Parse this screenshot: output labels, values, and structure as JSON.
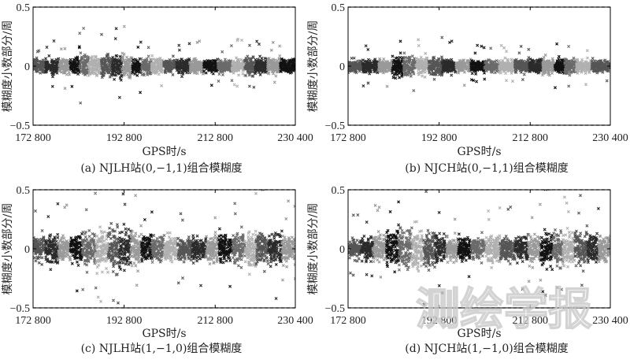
{
  "watermark": "测绘学报",
  "chart_data": [
    {
      "type": "scatter",
      "caption": "(a) NJLH站(0,−1,1)组合模糊度",
      "xlabel": "GPS时/s",
      "ylabel": "模糊度小数部分/周",
      "xlim": [
        172800,
        230400
      ],
      "ylim": [
        -0.5,
        0.5
      ],
      "xticks": [
        172800,
        192800,
        212800,
        230400
      ],
      "xtick_labels": [
        "172 800",
        "192 800",
        "212 800",
        "230 400"
      ],
      "yticks": [
        -0.5,
        0,
        0.5
      ],
      "ytick_labels": [
        "−0.5",
        "0",
        "0.5"
      ],
      "threshold_lines": [
        0.5,
        -0.5
      ],
      "marker": "x",
      "colors": [
        "#555555",
        "#2a2a2a",
        "#999999",
        "#111111",
        "#6a6a6a",
        "#b0b0b0"
      ],
      "segments": [
        {
          "x": [
            172800,
            175500
          ],
          "spread": 0.11
        },
        {
          "x": [
            175500,
            178500
          ],
          "spread": 0.12
        },
        {
          "x": [
            178500,
            180900
          ],
          "spread": 0.11
        },
        {
          "x": [
            180900,
            183000
          ],
          "spread": 0.13
        },
        {
          "x": [
            183000,
            185000
          ],
          "spread": 0.2
        },
        {
          "x": [
            185000,
            187800
          ],
          "spread": 0.16
        },
        {
          "x": [
            187800,
            190200
          ],
          "spread": 0.18
        },
        {
          "x": [
            190200,
            192400
          ],
          "spread": 0.19
        },
        {
          "x": [
            192400,
            194600
          ],
          "spread": 0.19
        },
        {
          "x": [
            194600,
            196500
          ],
          "spread": 0.13
        },
        {
          "x": [
            196500,
            198800
          ],
          "spread": 0.12
        },
        {
          "x": [
            198800,
            201500
          ],
          "spread": 0.12
        },
        {
          "x": [
            201500,
            204300
          ],
          "spread": 0.11
        },
        {
          "x": [
            204300,
            207200
          ],
          "spread": 0.11
        },
        {
          "x": [
            207200,
            210300
          ],
          "spread": 0.12
        },
        {
          "x": [
            210300,
            213400
          ],
          "spread": 0.1
        },
        {
          "x": [
            213400,
            216500
          ],
          "spread": 0.11
        },
        {
          "x": [
            216500,
            219300
          ],
          "spread": 0.13
        },
        {
          "x": [
            219300,
            221600
          ],
          "spread": 0.14
        },
        {
          "x": [
            221600,
            224300
          ],
          "spread": 0.12
        },
        {
          "x": [
            224300,
            227100
          ],
          "spread": 0.12
        },
        {
          "x": [
            227100,
            230400
          ],
          "spread": 0.11
        }
      ]
    },
    {
      "type": "scatter",
      "caption": "(b) NJCH站(0,−1,1)组合模糊度",
      "xlabel": "GPS时/s",
      "ylabel": "模糊度小数部分/周",
      "xlim": [
        172800,
        230400
      ],
      "ylim": [
        -0.5,
        0.5
      ],
      "xticks": [
        172800,
        192800,
        212800,
        230400
      ],
      "xtick_labels": [
        "172 800",
        "192 800",
        "212 800",
        "230 400"
      ],
      "yticks": [
        -0.5,
        0,
        0.5
      ],
      "ytick_labels": [
        "−0.5",
        "0",
        "0.5"
      ],
      "threshold_lines": [
        0.5,
        -0.5
      ],
      "marker": "x",
      "colors": [
        "#555555",
        "#2a2a2a",
        "#999999",
        "#111111",
        "#6a6a6a",
        "#b0b0b0"
      ],
      "segments": [
        {
          "x": [
            172800,
            176000
          ],
          "spread": 0.1
        },
        {
          "x": [
            176000,
            179500
          ],
          "spread": 0.11
        },
        {
          "x": [
            179500,
            182500
          ],
          "spread": 0.11
        },
        {
          "x": [
            182500,
            185000
          ],
          "spread": 0.16
        },
        {
          "x": [
            185000,
            187700
          ],
          "spread": 0.15
        },
        {
          "x": [
            187700,
            190500
          ],
          "spread": 0.14
        },
        {
          "x": [
            190500,
            193500
          ],
          "spread": 0.14
        },
        {
          "x": [
            193500,
            196500
          ],
          "spread": 0.12
        },
        {
          "x": [
            196500,
            199800
          ],
          "spread": 0.1
        },
        {
          "x": [
            199800,
            202800
          ],
          "spread": 0.1
        },
        {
          "x": [
            202800,
            206000
          ],
          "spread": 0.09
        },
        {
          "x": [
            206000,
            209400
          ],
          "spread": 0.1
        },
        {
          "x": [
            209400,
            212600
          ],
          "spread": 0.1
        },
        {
          "x": [
            212600,
            215500
          ],
          "spread": 0.11
        },
        {
          "x": [
            215500,
            218200
          ],
          "spread": 0.14
        },
        {
          "x": [
            218200,
            220400
          ],
          "spread": 0.12
        },
        {
          "x": [
            220400,
            222900
          ],
          "spread": 0.13
        },
        {
          "x": [
            222900,
            226300
          ],
          "spread": 0.1
        },
        {
          "x": [
            226300,
            230400
          ],
          "spread": 0.09
        }
      ]
    },
    {
      "type": "scatter",
      "caption": "(c) NJLH站(1,−1,0)组合模糊度",
      "xlabel": "GPS时/s",
      "ylabel": "模糊度小数部分/周",
      "xlim": [
        172800,
        230400
      ],
      "ylim": [
        -0.5,
        0.5
      ],
      "xticks": [
        172800,
        192800,
        212800,
        230400
      ],
      "xtick_labels": [
        "172 800",
        "192 800",
        "212 800",
        "230 400"
      ],
      "yticks": [
        -0.5,
        0,
        0.5
      ],
      "ytick_labels": [
        "−0.5",
        "0",
        "0.5"
      ],
      "threshold_lines": [
        0.5,
        -0.5
      ],
      "marker": "x",
      "colors": [
        "#555555",
        "#2a2a2a",
        "#999999",
        "#111111",
        "#6a6a6a",
        "#b0b0b0"
      ],
      "segments": [
        {
          "x": [
            172800,
            175500
          ],
          "spread": 0.2
        },
        {
          "x": [
            175500,
            178300
          ],
          "spread": 0.22
        },
        {
          "x": [
            178300,
            181000
          ],
          "spread": 0.21
        },
        {
          "x": [
            181000,
            183600
          ],
          "spread": 0.22
        },
        {
          "x": [
            183600,
            186600
          ],
          "spread": 0.3
        },
        {
          "x": [
            186600,
            189300
          ],
          "spread": 0.34
        },
        {
          "x": [
            189300,
            191800
          ],
          "spread": 0.36
        },
        {
          "x": [
            191800,
            194300
          ],
          "spread": 0.3
        },
        {
          "x": [
            194300,
            196600
          ],
          "spread": 0.27
        },
        {
          "x": [
            196600,
            199000
          ],
          "spread": 0.22
        },
        {
          "x": [
            199000,
            201600
          ],
          "spread": 0.21
        },
        {
          "x": [
            201600,
            204600
          ],
          "spread": 0.2
        },
        {
          "x": [
            204600,
            207700
          ],
          "spread": 0.19
        },
        {
          "x": [
            207700,
            210800
          ],
          "spread": 0.2
        },
        {
          "x": [
            210800,
            213600
          ],
          "spread": 0.2
        },
        {
          "x": [
            213600,
            216600
          ],
          "spread": 0.23
        },
        {
          "x": [
            216600,
            219300
          ],
          "spread": 0.24
        },
        {
          "x": [
            219300,
            221800
          ],
          "spread": 0.27
        },
        {
          "x": [
            221800,
            224500
          ],
          "spread": 0.3
        },
        {
          "x": [
            224500,
            227500
          ],
          "spread": 0.26
        },
        {
          "x": [
            227500,
            230400
          ],
          "spread": 0.23
        }
      ]
    },
    {
      "type": "scatter",
      "caption": "(d) NJCH站(1,−1,0)组合模糊度",
      "xlabel": "GPS时/s",
      "ylabel": "模糊度小数部分/周",
      "xlim": [
        172800,
        230400
      ],
      "ylim": [
        -0.5,
        0.5
      ],
      "xticks": [
        172800,
        192800,
        212800,
        230400
      ],
      "xtick_labels": [
        "172 800",
        "192 800",
        "212 800",
        "230 400"
      ],
      "yticks": [
        -0.5,
        0,
        0.5
      ],
      "ytick_labels": [
        "−0.5",
        "0",
        "0.5"
      ],
      "threshold_lines": [
        0.5,
        -0.5
      ],
      "marker": "x",
      "colors": [
        "#555555",
        "#2a2a2a",
        "#999999",
        "#111111",
        "#6a6a6a",
        "#b0b0b0"
      ],
      "segments": [
        {
          "x": [
            172800,
            175600
          ],
          "spread": 0.17
        },
        {
          "x": [
            175600,
            178400
          ],
          "spread": 0.18
        },
        {
          "x": [
            178400,
            181200
          ],
          "spread": 0.21
        },
        {
          "x": [
            181200,
            184000
          ],
          "spread": 0.28
        },
        {
          "x": [
            184000,
            186800
          ],
          "spread": 0.33
        },
        {
          "x": [
            186800,
            189400
          ],
          "spread": 0.34
        },
        {
          "x": [
            189400,
            192000
          ],
          "spread": 0.31
        },
        {
          "x": [
            192000,
            194400
          ],
          "spread": 0.24
        },
        {
          "x": [
            194400,
            197000
          ],
          "spread": 0.19
        },
        {
          "x": [
            197000,
            199900
          ],
          "spread": 0.17
        },
        {
          "x": [
            199900,
            203000
          ],
          "spread": 0.18
        },
        {
          "x": [
            203000,
            206200
          ],
          "spread": 0.2
        },
        {
          "x": [
            206200,
            209500
          ],
          "spread": 0.2
        },
        {
          "x": [
            209500,
            212400
          ],
          "spread": 0.21
        },
        {
          "x": [
            212400,
            215100
          ],
          "spread": 0.24
        },
        {
          "x": [
            215100,
            217700
          ],
          "spread": 0.3
        },
        {
          "x": [
            217700,
            220000
          ],
          "spread": 0.27
        },
        {
          "x": [
            220000,
            222600
          ],
          "spread": 0.25
        },
        {
          "x": [
            222600,
            225400
          ],
          "spread": 0.27
        },
        {
          "x": [
            225400,
            227900
          ],
          "spread": 0.24
        },
        {
          "x": [
            227900,
            230400
          ],
          "spread": 0.2
        }
      ]
    }
  ]
}
